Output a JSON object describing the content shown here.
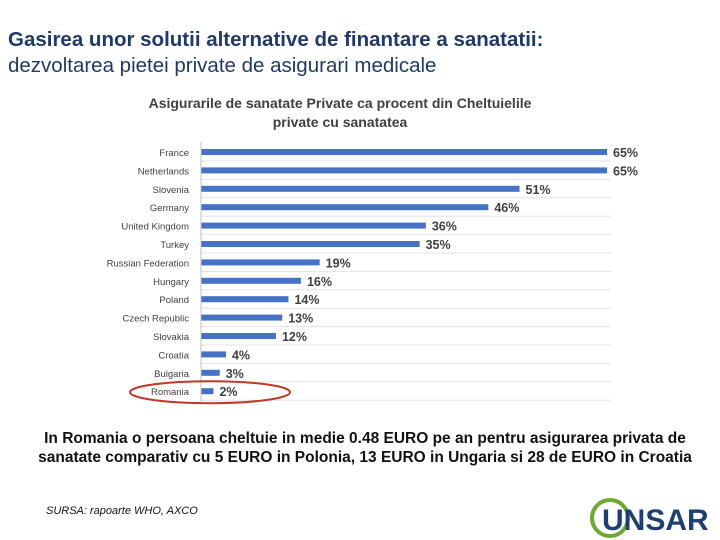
{
  "slide": {
    "title_line1": "Gasirea unor solutii alternative de finantare a sanatatii:",
    "title_line2": "dezvoltarea pietei private de asigurari medicale",
    "note": "In Romania o persoana cheltuie in medie 0.48 EURO pe an pentru asigurarea privata de sanatate comparativ cu 5 EURO in Polonia, 13 EURO in Ungaria si 28 de EURO in Croatia",
    "source": "SURSA: rapoarte WHO, AXCO",
    "logo_text": "UNSAR"
  },
  "colors": {
    "bar": "#4472c4",
    "title": "#1f3a68",
    "highlight_ellipse": "#c0392b",
    "logo_blue": "#1f3f73",
    "logo_green": "#6cab2f"
  },
  "chart_data": {
    "type": "bar",
    "orientation": "horizontal",
    "title": "Asigurarile de sanatate Private ca procent din Cheltuielile private cu sanatatea",
    "categories": [
      "France",
      "Netherlands",
      "Slovenia",
      "Germany",
      "United Kingdom",
      "Turkey",
      "Russian Federation",
      "Hungary",
      "Poland",
      "Czech Republic",
      "Slovakia",
      "Croatia",
      "Bulgaria",
      "Romania"
    ],
    "values": [
      65,
      65,
      51,
      46,
      36,
      35,
      19,
      16,
      14,
      13,
      12,
      4,
      3,
      2
    ],
    "labels": [
      "65%",
      "65%",
      "51%",
      "46%",
      "36%",
      "35%",
      "19%",
      "16%",
      "14%",
      "13%",
      "12%",
      "4%",
      "3%",
      "2%"
    ],
    "xlim": [
      0,
      65
    ],
    "grid": true,
    "legend": "none",
    "highlight_category": "Romania"
  }
}
